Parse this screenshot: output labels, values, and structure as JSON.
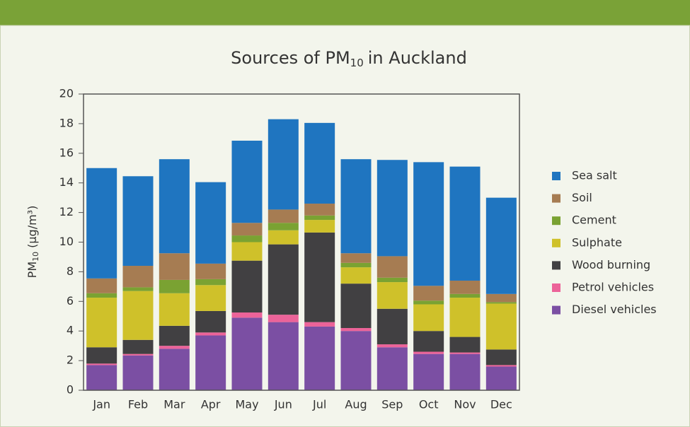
{
  "chart_data": {
    "type": "stacked_bar",
    "title": [
      "Sources of PM",
      "10",
      "in Auckland"
    ],
    "y_label": [
      "PM",
      "10",
      "(µg/m³)"
    ],
    "categories": [
      "Jan",
      "Feb",
      "Mar",
      "Apr",
      "May",
      "Jun",
      "Jul",
      "Aug",
      "Sep",
      "Oct",
      "Nov",
      "Dec"
    ],
    "series": [
      {
        "name": "Diesel vehicles",
        "color": "#7b4fa3",
        "values": [
          1.7,
          2.35,
          2.8,
          3.7,
          4.9,
          4.6,
          4.3,
          4.0,
          2.9,
          2.45,
          2.45,
          1.6
        ]
      },
      {
        "name": "Petrol vehicles",
        "color": "#ec6399",
        "values": [
          0.1,
          0.1,
          0.2,
          0.2,
          0.35,
          0.5,
          0.3,
          0.2,
          0.2,
          0.15,
          0.1,
          0.1
        ]
      },
      {
        "name": "Wood burning",
        "color": "#414042",
        "values": [
          1.1,
          0.95,
          1.35,
          1.45,
          3.5,
          4.75,
          6.05,
          3.0,
          2.4,
          1.4,
          1.05,
          1.05
        ]
      },
      {
        "name": "Sulphate",
        "color": "#cfc12a",
        "values": [
          3.35,
          3.3,
          2.2,
          1.75,
          1.25,
          0.95,
          0.85,
          1.1,
          1.8,
          1.8,
          2.65,
          3.1
        ]
      },
      {
        "name": "Cement",
        "color": "#7aa232",
        "values": [
          0.3,
          0.25,
          0.9,
          0.4,
          0.45,
          0.5,
          0.3,
          0.3,
          0.3,
          0.25,
          0.25,
          0.1
        ]
      },
      {
        "name": "Soil",
        "color": "#a67c52",
        "values": [
          1.0,
          1.45,
          1.8,
          1.05,
          0.85,
          0.9,
          0.8,
          0.65,
          1.45,
          1.0,
          0.9,
          0.55
        ]
      },
      {
        "name": "Sea salt",
        "color": "#1f75c0",
        "values": [
          7.45,
          6.05,
          6.35,
          5.5,
          5.55,
          6.1,
          5.45,
          6.35,
          6.5,
          8.35,
          7.7,
          6.5
        ]
      }
    ],
    "ylim": [
      0,
      20
    ],
    "yticks": [
      0,
      2,
      4,
      6,
      8,
      10,
      12,
      14,
      16,
      18,
      20
    ],
    "grid": false,
    "legend": "right"
  }
}
